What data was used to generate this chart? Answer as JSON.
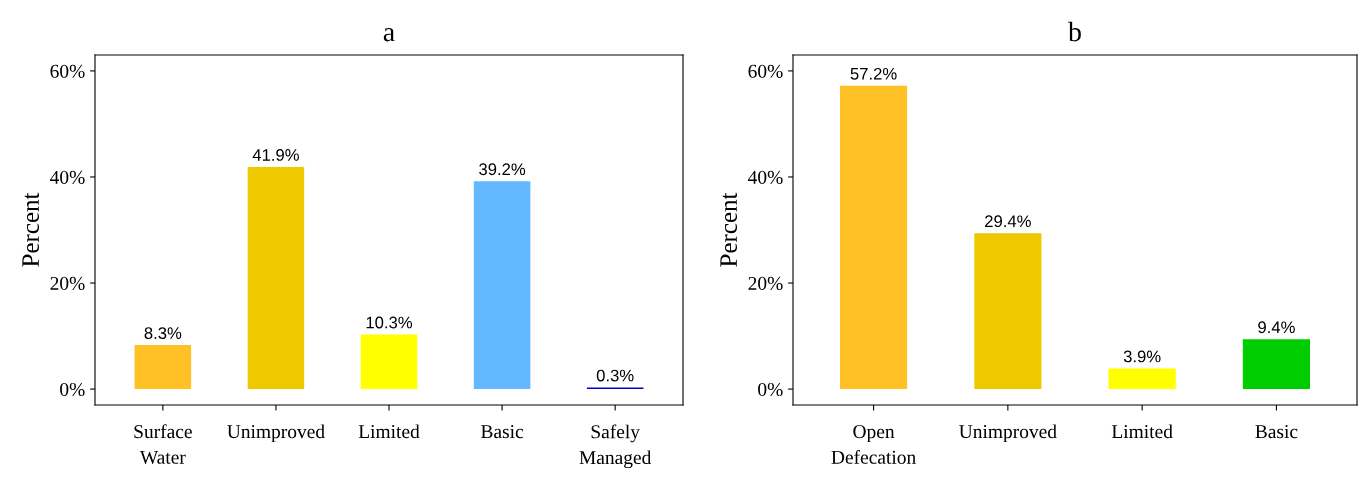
{
  "chart_data": [
    {
      "type": "bar",
      "title": "a",
      "ylabel": "Percent",
      "categories": [
        "Surface\nWater",
        "Unimproved",
        "Limited",
        "Basic",
        "Safely\nManaged"
      ],
      "values": [
        8.3,
        41.9,
        10.3,
        39.2,
        0.3
      ],
      "colors": [
        "#ffc125",
        "#eec900",
        "#ffff00",
        "#63b8ff",
        "#0000cd"
      ],
      "value_labels": [
        "8.3%",
        "41.9%",
        "10.3%",
        "39.2%",
        "0.3%"
      ],
      "ylim": [
        -3,
        63
      ],
      "yticks": [
        {
          "value": 0,
          "label": "0%"
        },
        {
          "value": 20,
          "label": "20%"
        },
        {
          "value": 40,
          "label": "40%"
        },
        {
          "value": 60,
          "label": "60%"
        }
      ],
      "grid": false
    },
    {
      "type": "bar",
      "title": "b",
      "ylabel": "Percent",
      "categories": [
        "Open\nDefecation",
        "Unimproved",
        "Limited",
        "Basic"
      ],
      "values": [
        57.2,
        29.4,
        3.9,
        9.4
      ],
      "colors": [
        "#ffc125",
        "#eec900",
        "#ffff00",
        "#00cd00"
      ],
      "value_labels": [
        "57.2%",
        "29.4%",
        "3.9%",
        "9.4%"
      ],
      "ylim": [
        -3,
        63
      ],
      "yticks": [
        {
          "value": 0,
          "label": "0%"
        },
        {
          "value": 20,
          "label": "20%"
        },
        {
          "value": 40,
          "label": "40%"
        },
        {
          "value": 60,
          "label": "60%"
        }
      ],
      "grid": false
    }
  ]
}
